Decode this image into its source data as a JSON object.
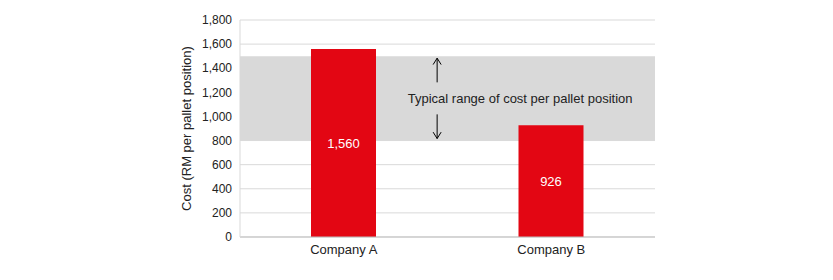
{
  "chart_data": {
    "type": "bar",
    "categories": [
      "Company A",
      "Company B"
    ],
    "values": [
      1560,
      926
    ],
    "value_labels": [
      "1,560",
      "926"
    ],
    "data_labels": true,
    "color": "#e30613",
    "ylabel": "Cost (RM per pallet position)",
    "ylim": [
      0,
      1800
    ],
    "yticks": [
      0,
      200,
      400,
      600,
      800,
      {
        "value": 1000,
        "label": "1,000"
      },
      {
        "value": 1200,
        "label": "1,200"
      },
      {
        "value": 1400,
        "label": "1,400"
      },
      {
        "value": 1600,
        "label": "1,600"
      },
      {
        "value": 1800,
        "label": "1,800"
      }
    ],
    "grid": true,
    "annotations": [
      {
        "text": "Typical range of cost per pallet position",
        "y_range": [
          800,
          1500
        ],
        "color": "#d9d9d9"
      }
    ]
  }
}
